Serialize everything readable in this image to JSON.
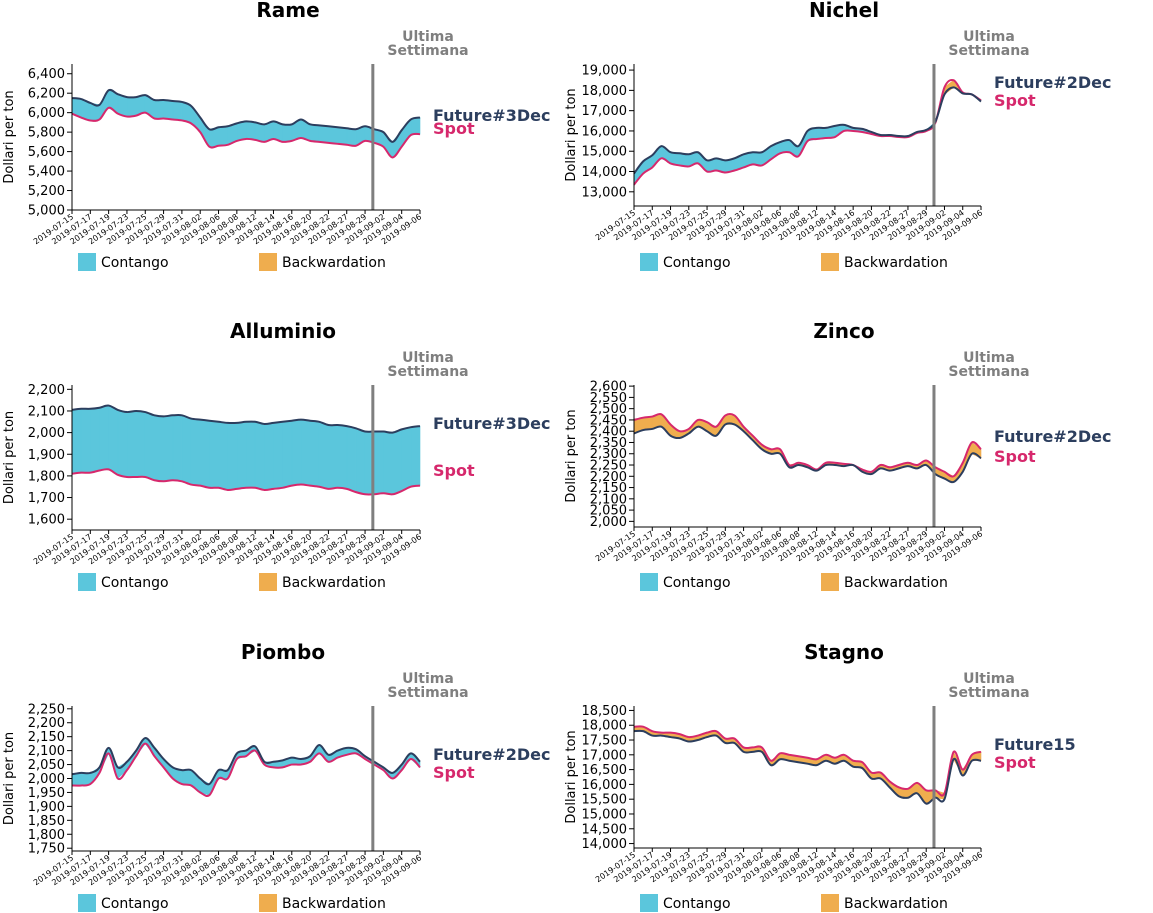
{
  "colors": {
    "contango": "#5bc6dc",
    "backwardation": "#efad4e",
    "spot": "#d6286c",
    "future": "#2c3e5e",
    "last_week": "#7f7f7f"
  },
  "legend": {
    "contango": "Contango",
    "backwardation": "Backwardation"
  },
  "last_week_label": [
    "Ultima",
    "Settimana"
  ],
  "ylabel": "Dollari per ton",
  "x_dates": [
    "2019-07-15",
    "2019-07-16",
    "2019-07-17",
    "2019-07-18",
    "2019-07-19",
    "2019-07-22",
    "2019-07-23",
    "2019-07-24",
    "2019-07-25",
    "2019-07-26",
    "2019-07-29",
    "2019-07-30",
    "2019-07-31",
    "2019-08-01",
    "2019-08-02",
    "2019-08-05",
    "2019-08-06",
    "2019-08-07",
    "2019-08-08",
    "2019-08-09",
    "2019-08-12",
    "2019-08-13",
    "2019-08-14",
    "2019-08-15",
    "2019-08-16",
    "2019-08-19",
    "2019-08-20",
    "2019-08-21",
    "2019-08-22",
    "2019-08-23",
    "2019-08-27",
    "2019-08-28",
    "2019-08-29",
    "2019-08-30",
    "2019-09-02",
    "2019-09-03",
    "2019-09-04",
    "2019-09-05",
    "2019-09-06"
  ],
  "x_tick_labels": [
    "2019-07-15",
    "2019-07-17",
    "2019-07-19",
    "2019-07-23",
    "2019-07-25",
    "2019-07-29",
    "2019-07-31",
    "2019-08-02",
    "2019-08-06",
    "2019-08-08",
    "2019-08-12",
    "2019-08-14",
    "2019-08-16",
    "2019-08-20",
    "2019-08-22",
    "2019-08-27",
    "2019-08-29",
    "2019-09-02",
    "2019-09-04",
    "2019-09-06"
  ],
  "last_week_start": "2019-08-30",
  "chart_data": [
    {
      "type": "area",
      "title": "Rame",
      "ylim": [
        5000,
        6500
      ],
      "yticks": [
        "5,000",
        "5,200",
        "5,400",
        "5,600",
        "5,800",
        "6,000",
        "6,200",
        "6,400"
      ],
      "spot_label": "Spot",
      "future_label": "Future#3Dec",
      "series": [
        {
          "name": "Spot",
          "values": [
            5990,
            5950,
            5920,
            5930,
            6050,
            5990,
            5960,
            5970,
            6000,
            5940,
            5940,
            5930,
            5920,
            5890,
            5800,
            5650,
            5660,
            5670,
            5710,
            5730,
            5720,
            5700,
            5730,
            5700,
            5710,
            5740,
            5710,
            5700,
            5690,
            5680,
            5670,
            5660,
            5710,
            5690,
            5650,
            5540,
            5650,
            5770,
            5780
          ]
        },
        {
          "name": "Future#3Dec",
          "values": [
            6150,
            6140,
            6100,
            6080,
            6230,
            6190,
            6160,
            6160,
            6180,
            6130,
            6130,
            6120,
            6110,
            6070,
            5950,
            5830,
            5850,
            5860,
            5890,
            5910,
            5900,
            5880,
            5910,
            5880,
            5880,
            5930,
            5880,
            5870,
            5860,
            5850,
            5840,
            5830,
            5860,
            5830,
            5800,
            5700,
            5820,
            5930,
            5950
          ]
        }
      ]
    },
    {
      "type": "area",
      "title": "Nichel",
      "ylim": [
        12300,
        19300
      ],
      "yticks": [
        "13,000",
        "14,000",
        "15,000",
        "16,000",
        "17,000",
        "18,000",
        "19,000"
      ],
      "spot_label": "Spot",
      "future_label": "Future#2Dec",
      "series": [
        {
          "name": "Spot",
          "values": [
            13350,
            13900,
            14200,
            14650,
            14400,
            14300,
            14250,
            14400,
            14000,
            14050,
            13950,
            14050,
            14200,
            14350,
            14300,
            14600,
            14900,
            14950,
            14750,
            15500,
            15600,
            15650,
            15700,
            16000,
            16000,
            15950,
            15850,
            15750,
            15750,
            15700,
            15700,
            15900,
            16000,
            16400,
            18150,
            18500,
            17900,
            17800,
            17500
          ]
        },
        {
          "name": "Future#2Dec",
          "values": [
            13900,
            14500,
            14800,
            15250,
            14950,
            14900,
            14850,
            14950,
            14550,
            14650,
            14550,
            14650,
            14850,
            14950,
            14950,
            15250,
            15450,
            15550,
            15250,
            16000,
            16150,
            16150,
            16250,
            16300,
            16150,
            16100,
            15950,
            15800,
            15800,
            15750,
            15750,
            15950,
            16050,
            16450,
            17800,
            18150,
            17850,
            17800,
            17450
          ]
        }
      ]
    },
    {
      "type": "area",
      "title": "Alluminio",
      "ylim": [
        1550,
        2220
      ],
      "yticks": [
        "1,600",
        "1,700",
        "1,800",
        "1,900",
        "2,000",
        "2,100",
        "2,200"
      ],
      "spot_label": "Spot",
      "future_label": "Future#3Dec",
      "series": [
        {
          "name": "Spot",
          "values": [
            1810,
            1815,
            1815,
            1825,
            1830,
            1805,
            1795,
            1795,
            1795,
            1780,
            1775,
            1780,
            1775,
            1760,
            1755,
            1745,
            1745,
            1735,
            1740,
            1745,
            1745,
            1735,
            1740,
            1745,
            1755,
            1760,
            1755,
            1750,
            1740,
            1745,
            1740,
            1725,
            1715,
            1715,
            1720,
            1715,
            1730,
            1750,
            1755
          ]
        },
        {
          "name": "Future#3Dec",
          "values": [
            2105,
            2110,
            2110,
            2115,
            2125,
            2105,
            2095,
            2100,
            2095,
            2080,
            2075,
            2080,
            2080,
            2065,
            2060,
            2055,
            2050,
            2045,
            2045,
            2050,
            2050,
            2040,
            2045,
            2050,
            2055,
            2060,
            2055,
            2050,
            2035,
            2035,
            2030,
            2020,
            2005,
            2005,
            2005,
            2000,
            2015,
            2025,
            2030
          ]
        }
      ]
    },
    {
      "type": "area",
      "title": "Zinco",
      "ylim": [
        1975,
        2605
      ],
      "yticks": [
        "2,000",
        "2,050",
        "2,100",
        "2,150",
        "2,200",
        "2,250",
        "2,300",
        "2,350",
        "2,400",
        "2,450",
        "2,500",
        "2,550",
        "2,600"
      ],
      "spot_label": "Spot",
      "future_label": "Future#2Dec",
      "series": [
        {
          "name": "Spot",
          "values": [
            2450,
            2460,
            2465,
            2475,
            2430,
            2400,
            2410,
            2450,
            2440,
            2420,
            2470,
            2470,
            2420,
            2380,
            2340,
            2320,
            2320,
            2250,
            2260,
            2250,
            2230,
            2260,
            2260,
            2255,
            2250,
            2230,
            2220,
            2250,
            2240,
            2250,
            2260,
            2250,
            2270,
            2240,
            2220,
            2200,
            2260,
            2350,
            2320
          ]
        },
        {
          "name": "Future#2Dec",
          "values": [
            2390,
            2405,
            2410,
            2420,
            2380,
            2370,
            2390,
            2420,
            2400,
            2380,
            2430,
            2430,
            2400,
            2360,
            2320,
            2300,
            2300,
            2240,
            2250,
            2240,
            2225,
            2250,
            2250,
            2245,
            2250,
            2220,
            2210,
            2235,
            2225,
            2235,
            2245,
            2235,
            2250,
            2210,
            2190,
            2175,
            2220,
            2300,
            2280
          ]
        }
      ]
    },
    {
      "type": "area",
      "title": "Piombo",
      "ylim": [
        1740,
        2260
      ],
      "yticks": [
        "1,750",
        "1,800",
        "1,850",
        "1,900",
        "1,950",
        "2,000",
        "2,050",
        "2,100",
        "2,150",
        "2,200",
        "2,250"
      ],
      "spot_label": "Spot",
      "future_label": "Future#2Dec",
      "series": [
        {
          "name": "Spot",
          "values": [
            1975,
            1975,
            1980,
            2020,
            2090,
            2000,
            2030,
            2080,
            2125,
            2080,
            2040,
            2000,
            1980,
            1975,
            1950,
            1940,
            2000,
            2000,
            2070,
            2080,
            2100,
            2050,
            2040,
            2040,
            2050,
            2050,
            2060,
            2090,
            2060,
            2075,
            2085,
            2090,
            2070,
            2050,
            2030,
            2000,
            2030,
            2070,
            2040
          ]
        },
        {
          "name": "Future#2Dec",
          "values": [
            2015,
            2020,
            2020,
            2040,
            2110,
            2040,
            2060,
            2100,
            2145,
            2110,
            2070,
            2040,
            2030,
            2030,
            2000,
            1980,
            2030,
            2030,
            2090,
            2100,
            2115,
            2060,
            2060,
            2065,
            2075,
            2070,
            2080,
            2120,
            2085,
            2100,
            2110,
            2105,
            2080,
            2060,
            2040,
            2020,
            2050,
            2090,
            2060
          ]
        }
      ]
    },
    {
      "type": "area",
      "title": "Stagno",
      "ylim": [
        13850,
        18650
      ],
      "yticks": [
        "14,000",
        "14,500",
        "15,000",
        "15,500",
        "16,000",
        "16,500",
        "17,000",
        "17,500",
        "18,000",
        "18,500"
      ],
      "spot_label": "Spot",
      "future_label": "Future15",
      "series": [
        {
          "name": "Spot",
          "values": [
            17950,
            17950,
            17800,
            17750,
            17750,
            17700,
            17600,
            17650,
            17750,
            17800,
            17550,
            17550,
            17250,
            17250,
            17250,
            16800,
            17050,
            17000,
            16950,
            16900,
            16850,
            17000,
            16900,
            17000,
            16800,
            16750,
            16400,
            16400,
            16100,
            15900,
            15850,
            16050,
            15800,
            15800,
            15700,
            17100,
            16500,
            17000,
            17100
          ]
        },
        {
          "name": "Future15",
          "values": [
            17800,
            17800,
            17650,
            17650,
            17600,
            17550,
            17450,
            17500,
            17600,
            17650,
            17400,
            17400,
            17100,
            17100,
            17100,
            16650,
            16850,
            16800,
            16750,
            16700,
            16650,
            16800,
            16700,
            16800,
            16600,
            16550,
            16200,
            16200,
            15900,
            15600,
            15550,
            15700,
            15350,
            15550,
            15500,
            16850,
            16300,
            16800,
            16800
          ]
        }
      ]
    }
  ]
}
